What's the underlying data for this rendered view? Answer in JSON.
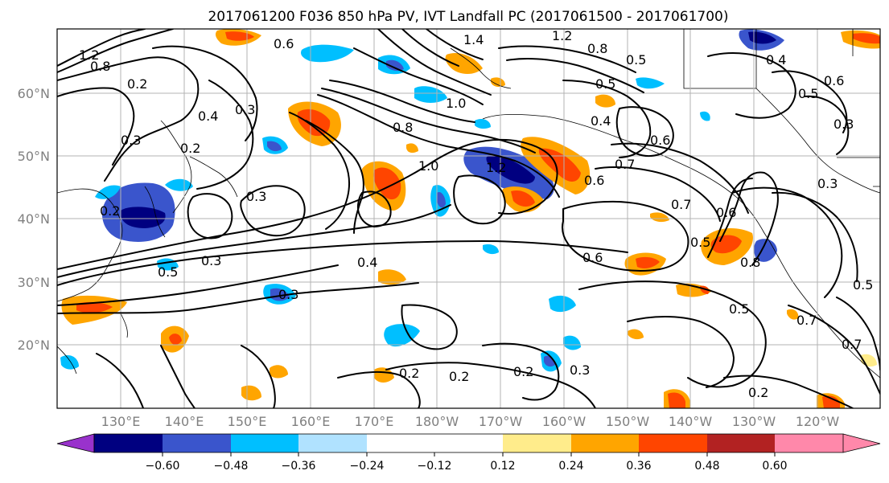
{
  "title": "2017061200 F036 850 hPa PV, IVT Landfall PC (2017061500 - 2017061700)",
  "lat_ticks": [
    "20°N",
    "30°N",
    "40°N",
    "50°N",
    "60°N"
  ],
  "lon_ticks": [
    "130°E",
    "140°E",
    "150°E",
    "160°E",
    "170°E",
    "180°W",
    "170°W",
    "160°W",
    "150°W",
    "140°W",
    "130°W",
    "120°W"
  ],
  "colorbar": {
    "ticks": [
      "−0.60",
      "−0.48",
      "−0.36",
      "−0.24",
      "−0.12",
      "0.12",
      "0.24",
      "0.36",
      "0.48",
      "0.60"
    ],
    "colors": [
      "#9932cc",
      "#000080",
      "#3a55cc",
      "#00bfff",
      "#b0e2ff",
      "#ffffff",
      "#ffec8b",
      "#ffa500",
      "#ff4500",
      "#b22222",
      "#ff88aa"
    ]
  },
  "contour_labels": [
    "1.2",
    "0.8",
    "0.2",
    "0.3",
    "0.4",
    "1.4",
    "0.6",
    "1.2",
    "0.8",
    "0.5",
    "0.4",
    "0.3",
    "0.6",
    "0.5",
    "0.5",
    "1.0",
    "0.8",
    "0.4",
    "0.6",
    "0.2",
    "0.3",
    "0.7",
    "0.6",
    "0.3",
    "0.7",
    "0.2",
    "0.3",
    "1.0",
    "1.2",
    "0.6",
    "0.4",
    "0.3",
    "0.5",
    "0.8",
    "0.6",
    "0.5",
    "0.3",
    "0.5",
    "0.7",
    "0.2",
    "0.2",
    "0.2",
    "0.3",
    "0.2",
    "0.5",
    "0.7"
  ]
}
